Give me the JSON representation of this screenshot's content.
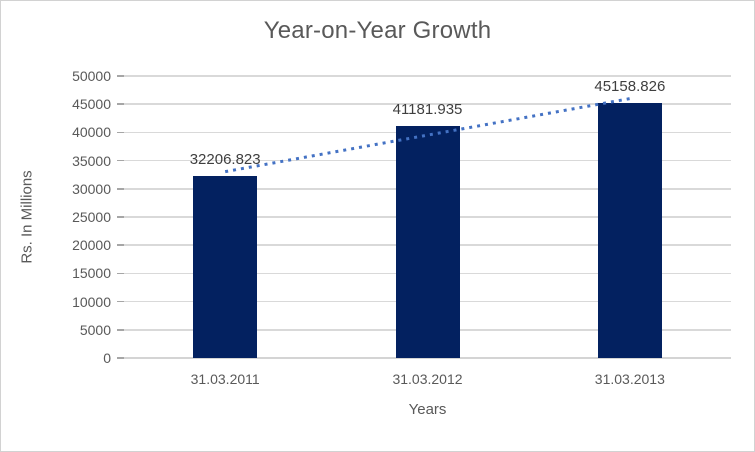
{
  "chart_data": {
    "type": "bar",
    "title": "Year-on-Year Growth",
    "categories": [
      "31.03.2011",
      "31.03.2012",
      "31.03.2013"
    ],
    "values": [
      32206.823,
      41181.935,
      45158.826
    ],
    "data_labels": [
      "32206.823",
      "41181.935",
      "45158.826"
    ],
    "xlabel": "Years",
    "ylabel": "Rs. In Millions",
    "ylim": [
      0,
      50000
    ],
    "ytick_step": 5000,
    "yticks": [
      0,
      5000,
      10000,
      15000,
      20000,
      25000,
      30000,
      35000,
      40000,
      45000,
      50000
    ],
    "grid": true,
    "legend": "none",
    "trendline": {
      "type": "linear",
      "style": "dotted"
    },
    "colors": {
      "bar": "#032160",
      "trendline": "#4472C4",
      "gridline": "#d9d9d9",
      "axis_text": "#595959",
      "data_label_text": "#3f3f3f",
      "title_text": "#595959"
    }
  }
}
